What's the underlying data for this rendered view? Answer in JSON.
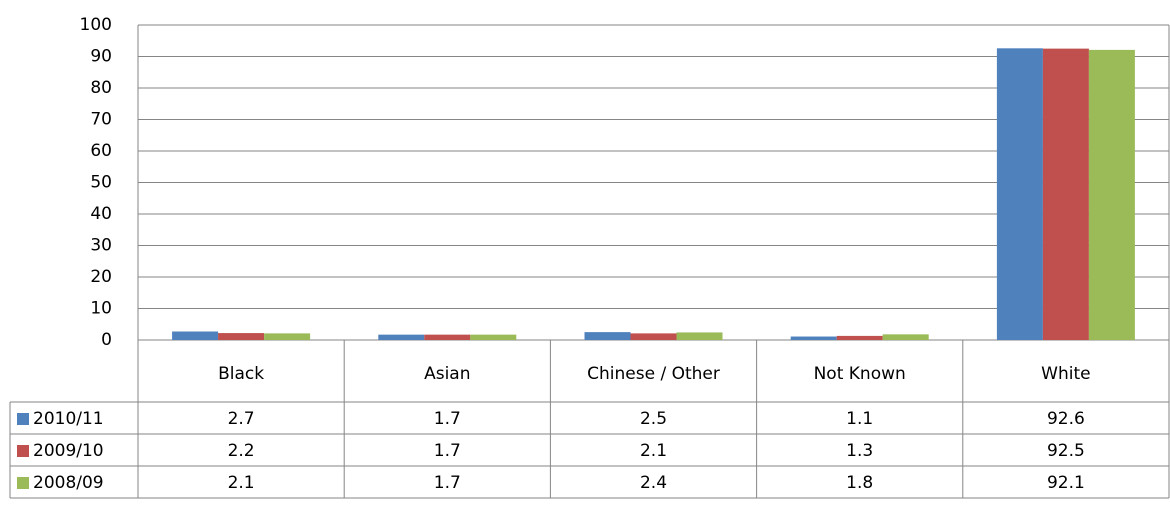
{
  "chart_data": {
    "type": "bar",
    "categories": [
      "Black",
      "Asian",
      "Chinese / Other",
      "Not Known",
      "White"
    ],
    "series": [
      {
        "name": "2010/11",
        "color": "#4f81bd",
        "values": [
          2.7,
          1.7,
          2.5,
          1.1,
          92.6
        ]
      },
      {
        "name": "2009/10",
        "color": "#c0504d",
        "values": [
          2.2,
          1.7,
          2.1,
          1.3,
          92.5
        ]
      },
      {
        "name": "2008/09",
        "color": "#9bbb59",
        "values": [
          2.1,
          1.7,
          2.4,
          1.8,
          92.1
        ]
      }
    ],
    "ylim": [
      0,
      100
    ],
    "yticks": [
      0,
      10,
      20,
      30,
      40,
      50,
      60,
      70,
      80,
      90,
      100
    ],
    "grid": true
  }
}
